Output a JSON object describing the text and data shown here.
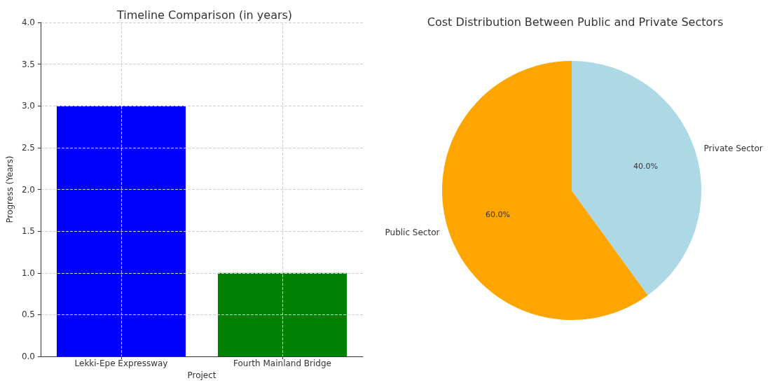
{
  "chart_data": [
    {
      "type": "bar",
      "title": "Timeline Comparison (in years)",
      "xlabel": "Project",
      "ylabel": "Progress (Years)",
      "categories": [
        "Lekki-Epe Expressway",
        "Fourth Mainland Bridge"
      ],
      "values": [
        3,
        1
      ],
      "colors": [
        "#0000ff",
        "#008000"
      ],
      "ylim": [
        0,
        4
      ],
      "yticks": [
        {
          "value": 0,
          "label": "0.0"
        },
        {
          "value": 0.5,
          "label": "0.5"
        },
        {
          "value": 1,
          "label": "1.0"
        },
        {
          "value": 1.5,
          "label": "1.5"
        },
        {
          "value": 2,
          "label": "2.0"
        },
        {
          "value": 2.5,
          "label": "2.5"
        },
        {
          "value": 3,
          "label": "3.0"
        },
        {
          "value": 3.5,
          "label": "3.5"
        },
        {
          "value": 4,
          "label": "4.0"
        }
      ],
      "grid": true
    },
    {
      "type": "pie",
      "title": "Cost Distribution Between Public and Private Sectors",
      "categories": [
        "Public Sector",
        "Private Sector"
      ],
      "values": [
        60,
        40
      ],
      "colors": [
        "#ffa500",
        "#add8e6"
      ],
      "value_labels": [
        "60.0%",
        "40.0%"
      ]
    }
  ]
}
